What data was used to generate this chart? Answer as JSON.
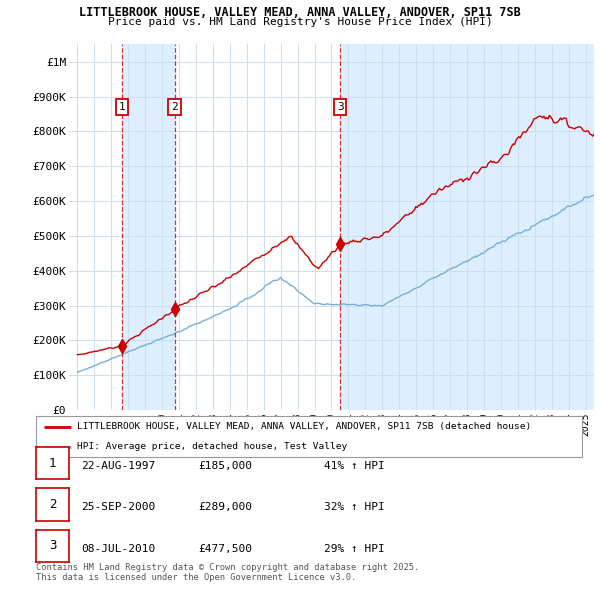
{
  "title1": "LITTLEBROOK HOUSE, VALLEY MEAD, ANNA VALLEY, ANDOVER, SP11 7SB",
  "title2": "Price paid vs. HM Land Registry's House Price Index (HPI)",
  "bg_color": "#ffffff",
  "plot_bg_color": "#ffffff",
  "shade_color": "#ddeeff",
  "grid_color": "#ccddee",
  "red_color": "#cc0000",
  "blue_color": "#7aafd4",
  "sale_dates": [
    1997.64,
    2000.73,
    2010.52
  ],
  "sale_prices": [
    185000,
    289000,
    477500
  ],
  "sale_labels": [
    "1",
    "2",
    "3"
  ],
  "legend_entries": [
    "LITTLEBROOK HOUSE, VALLEY MEAD, ANNA VALLEY, ANDOVER, SP11 7SB (detached house)",
    "HPI: Average price, detached house, Test Valley"
  ],
  "table_data": [
    [
      "1",
      "22-AUG-1997",
      "£185,000",
      "41% ↑ HPI"
    ],
    [
      "2",
      "25-SEP-2000",
      "£289,000",
      "32% ↑ HPI"
    ],
    [
      "3",
      "08-JUL-2010",
      "£477,500",
      "29% ↑ HPI"
    ]
  ],
  "footnote": "Contains HM Land Registry data © Crown copyright and database right 2025.\nThis data is licensed under the Open Government Licence v3.0.",
  "ylim": [
    0,
    1050000
  ],
  "xlim": [
    1994.5,
    2025.5
  ],
  "yticks": [
    0,
    100000,
    200000,
    300000,
    400000,
    500000,
    600000,
    700000,
    800000,
    900000,
    1000000
  ],
  "ytick_labels": [
    "£0",
    "£100K",
    "£200K",
    "£300K",
    "£400K",
    "£500K",
    "£600K",
    "£700K",
    "£800K",
    "£900K",
    "£1M"
  ]
}
